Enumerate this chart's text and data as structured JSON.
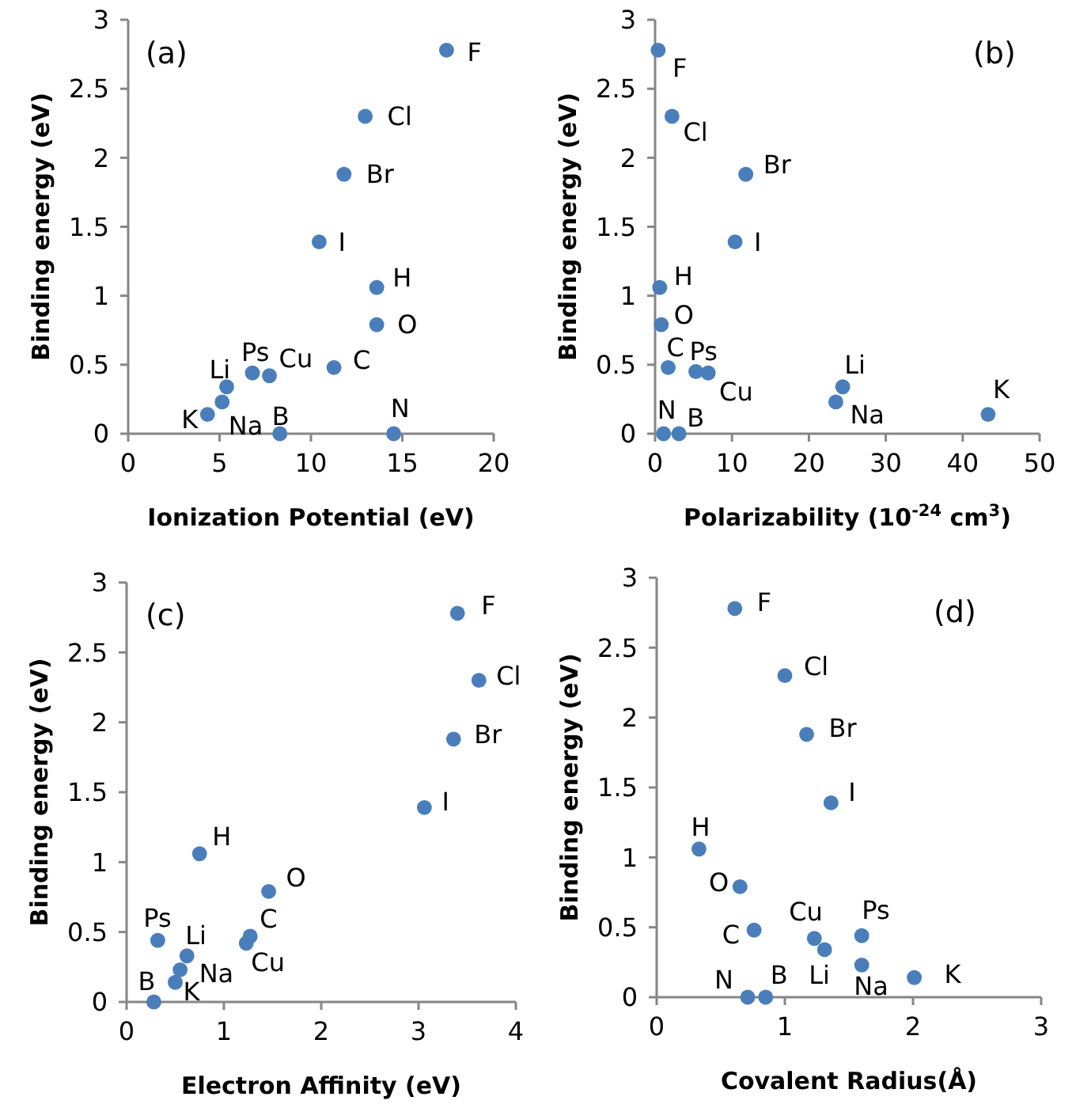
{
  "chart_data": [
    {
      "type": "scatter",
      "title": "(a)",
      "xlabel": "Ionization Potential (eV)",
      "ylabel": "Binding energy (eV)",
      "xlim": [
        0,
        20
      ],
      "xticks": [
        0,
        5,
        10,
        15,
        20
      ],
      "ylim": [
        0,
        3
      ],
      "yticks": [
        0,
        0.5,
        1,
        1.5,
        2,
        2.5,
        3
      ],
      "grid": false,
      "marker": "circle",
      "series": [
        {
          "color": "#4a7ebb",
          "x": [
            17.42,
            12.97,
            11.81,
            10.45,
            13.6,
            13.6,
            11.26,
            7.73,
            6.8,
            5.39,
            5.14,
            4.34,
            8.3,
            14.53
          ],
          "values": [
            2.78,
            2.3,
            1.88,
            1.39,
            1.06,
            0.79,
            0.48,
            0.42,
            0.44,
            0.34,
            0.23,
            0.14,
            0,
            0
          ]
        }
      ],
      "annotations": [
        {
          "text": "F",
          "x": 17.42,
          "y": 2.78
        },
        {
          "text": "Cl",
          "x": 12.97,
          "y": 2.3
        },
        {
          "text": "Br",
          "x": 11.81,
          "y": 1.88
        },
        {
          "text": "I",
          "x": 10.45,
          "y": 1.39
        },
        {
          "text": "H",
          "x": 13.6,
          "y": 1.06
        },
        {
          "text": "O",
          "x": 13.6,
          "y": 0.79
        },
        {
          "text": "C",
          "x": 11.26,
          "y": 0.48
        },
        {
          "text": "Cu",
          "x": 7.73,
          "y": 0.42
        },
        {
          "text": "Ps",
          "x": 6.8,
          "y": 0.44
        },
        {
          "text": "Li",
          "x": 5.39,
          "y": 0.34
        },
        {
          "text": "Na",
          "x": 5.14,
          "y": 0.23
        },
        {
          "text": "K",
          "x": 4.34,
          "y": 0.14
        },
        {
          "text": "B",
          "x": 8.3,
          "y": 0
        },
        {
          "text": "N",
          "x": 14.53,
          "y": 0
        }
      ]
    },
    {
      "type": "scatter",
      "title": "(b)",
      "xlabel": "Polarizability (10$^{-24}$ cm$^{3}$)",
      "ylabel": "Binding energy (eV)",
      "xlim": [
        0,
        50
      ],
      "xticks": [
        0,
        10,
        20,
        30,
        40,
        50
      ],
      "ylim": [
        0,
        3
      ],
      "yticks": [
        0,
        0.5,
        1,
        1.5,
        2,
        2.5,
        3
      ],
      "grid": false,
      "marker": "circle",
      "series": [
        {
          "color": "#4a7ebb",
          "x": [
            0.4,
            2.2,
            11.8,
            10.4,
            0.6,
            0.8,
            1.7,
            5.3,
            6.9,
            24.4,
            23.5,
            43.3,
            1.1,
            3.1
          ],
          "values": [
            2.78,
            2.3,
            1.88,
            1.39,
            1.06,
            0.79,
            0.48,
            0.45,
            0.44,
            0.34,
            0.23,
            0.14,
            0,
            0
          ]
        }
      ],
      "annotations": [
        {
          "text": "F",
          "x": 0.4,
          "y": 2.78
        },
        {
          "text": "Cl",
          "x": 2.2,
          "y": 2.3
        },
        {
          "text": "Br",
          "x": 11.8,
          "y": 1.88
        },
        {
          "text": "I",
          "x": 10.4,
          "y": 1.39
        },
        {
          "text": "H",
          "x": 0.6,
          "y": 1.06
        },
        {
          "text": "O",
          "x": 0.8,
          "y": 0.79
        },
        {
          "text": "C",
          "x": 1.7,
          "y": 0.48
        },
        {
          "text": "Ps",
          "x": 5.3,
          "y": 0.45
        },
        {
          "text": "Cu",
          "x": 6.9,
          "y": 0.44
        },
        {
          "text": "Li",
          "x": 24.4,
          "y": 0.34
        },
        {
          "text": "Na",
          "x": 23.5,
          "y": 0.23
        },
        {
          "text": "K",
          "x": 43.3,
          "y": 0.14
        },
        {
          "text": "N",
          "x": 1.1,
          "y": 0
        },
        {
          "text": "B",
          "x": 3.1,
          "y": 0
        }
      ]
    },
    {
      "type": "scatter",
      "title": "(c)",
      "xlabel": "Electron  Affinity  (eV)",
      "ylabel": "Binding energy (eV)",
      "xlim": [
        0,
        4
      ],
      "xticks": [
        0,
        1,
        2,
        3,
        4
      ],
      "ylim": [
        0,
        3
      ],
      "yticks": [
        0,
        0.5,
        1,
        1.5,
        2,
        2.5,
        3
      ],
      "grid": false,
      "marker": "circle",
      "series": [
        {
          "color": "#4a7ebb",
          "x": [
            3.4,
            3.62,
            3.36,
            3.06,
            0.75,
            1.46,
            1.27,
            1.23,
            0.32,
            0.62,
            0.55,
            0.5,
            0.28
          ],
          "values": [
            2.78,
            2.3,
            1.88,
            1.39,
            1.06,
            0.79,
            0.47,
            0.42,
            0.44,
            0.33,
            0.23,
            0.14,
            0
          ]
        }
      ],
      "annotations": [
        {
          "text": "F",
          "x": 3.4,
          "y": 2.78
        },
        {
          "text": "Cl",
          "x": 3.62,
          "y": 2.3
        },
        {
          "text": "Br",
          "x": 3.36,
          "y": 1.88
        },
        {
          "text": "I",
          "x": 3.06,
          "y": 1.39
        },
        {
          "text": "H",
          "x": 0.75,
          "y": 1.06
        },
        {
          "text": "O",
          "x": 1.46,
          "y": 0.79
        },
        {
          "text": "C",
          "x": 1.27,
          "y": 0.47
        },
        {
          "text": "Cu",
          "x": 1.23,
          "y": 0.42
        },
        {
          "text": "Ps",
          "x": 0.32,
          "y": 0.44
        },
        {
          "text": "Li",
          "x": 0.62,
          "y": 0.33
        },
        {
          "text": "Na",
          "x": 0.55,
          "y": 0.23
        },
        {
          "text": "K",
          "x": 0.5,
          "y": 0.14
        },
        {
          "text": "B",
          "x": 0.28,
          "y": 0
        }
      ]
    },
    {
      "type": "scatter",
      "title": "(d)",
      "xlabel": "Covalent Radius(Å)",
      "ylabel": "Binding energy (eV)",
      "xlim": [
        0,
        3
      ],
      "xticks": [
        0,
        1,
        2,
        3
      ],
      "ylim": [
        0,
        3
      ],
      "yticks": [
        0,
        0.5,
        1,
        1.5,
        2,
        2.5,
        3
      ],
      "grid": false,
      "marker": "circle",
      "series": [
        {
          "color": "#4a7ebb",
          "x": [
            0.61,
            1.0,
            1.17,
            1.36,
            0.33,
            0.65,
            0.76,
            1.23,
            1.31,
            1.6,
            1.6,
            2.01,
            0.71,
            0.85
          ],
          "values": [
            2.78,
            2.3,
            1.88,
            1.39,
            1.06,
            0.79,
            0.48,
            0.42,
            0.34,
            0.44,
            0.23,
            0.14,
            0,
            0
          ]
        }
      ],
      "annotations": [
        {
          "text": "F",
          "x": 0.61,
          "y": 2.78
        },
        {
          "text": "Cl",
          "x": 1.0,
          "y": 2.3
        },
        {
          "text": "Br",
          "x": 1.17,
          "y": 1.88
        },
        {
          "text": "I",
          "x": 1.36,
          "y": 1.39
        },
        {
          "text": "H",
          "x": 0.33,
          "y": 1.06
        },
        {
          "text": "O",
          "x": 0.65,
          "y": 0.79
        },
        {
          "text": "C",
          "x": 0.76,
          "y": 0.48
        },
        {
          "text": "Cu",
          "x": 1.23,
          "y": 0.42
        },
        {
          "text": "Li",
          "x": 1.31,
          "y": 0.34
        },
        {
          "text": "Ps",
          "x": 1.6,
          "y": 0.44
        },
        {
          "text": "Na",
          "x": 1.6,
          "y": 0.23
        },
        {
          "text": "K",
          "x": 2.01,
          "y": 0.14
        },
        {
          "text": "N",
          "x": 0.71,
          "y": 0
        },
        {
          "text": "B",
          "x": 0.85,
          "y": 0
        }
      ]
    }
  ]
}
